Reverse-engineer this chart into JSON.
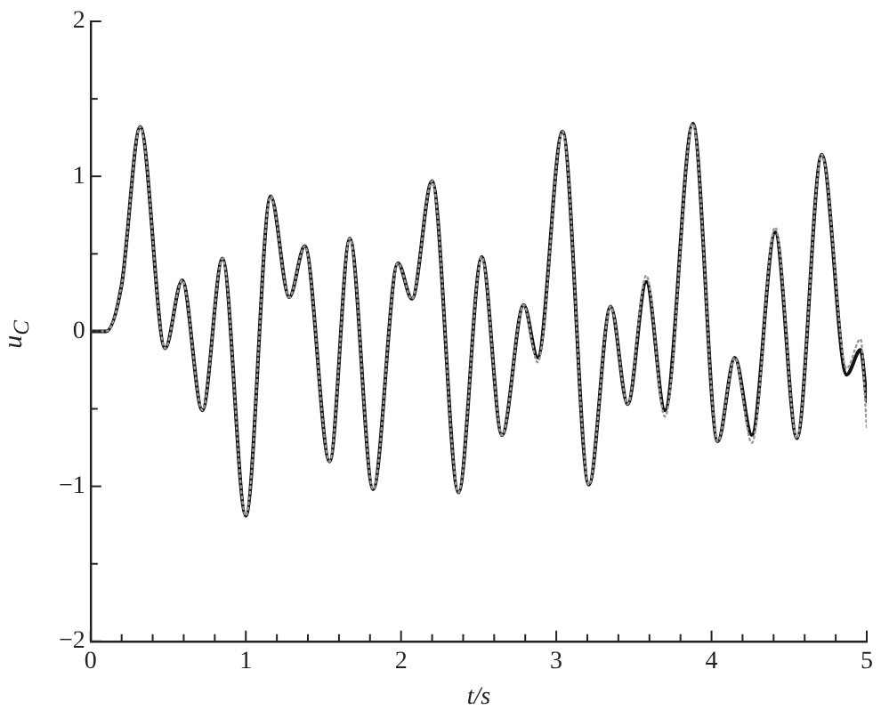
{
  "chart_data": {
    "type": "line",
    "xlabel": "t/s",
    "ylabel": "u$_{C}$",
    "xlim": [
      0,
      5
    ],
    "ylim": [
      -2,
      2
    ],
    "xticks": [
      0,
      {
        "value": 0.2,
        "label": null
      },
      {
        "value": 0.4,
        "label": null
      },
      {
        "value": 0.6,
        "label": null
      },
      {
        "value": 0.8,
        "label": null
      },
      1,
      {
        "value": 1.2,
        "label": null
      },
      {
        "value": 1.4,
        "label": null
      },
      {
        "value": 1.6,
        "label": null
      },
      {
        "value": 1.8,
        "label": null
      },
      2,
      {
        "value": 2.2,
        "label": null
      },
      {
        "value": 2.4,
        "label": null
      },
      {
        "value": 2.6,
        "label": null
      },
      {
        "value": 2.8,
        "label": null
      },
      3,
      {
        "value": 3.2,
        "label": null
      },
      {
        "value": 3.4,
        "label": null
      },
      {
        "value": 3.6,
        "label": null
      },
      {
        "value": 3.8,
        "label": null
      },
      4,
      {
        "value": 4.2,
        "label": null
      },
      {
        "value": 4.4,
        "label": null
      },
      {
        "value": 4.6,
        "label": null
      },
      {
        "value": 4.8,
        "label": null
      },
      5
    ],
    "yticks": [
      -2,
      {
        "value": -1.5,
        "label": null
      },
      -1,
      {
        "value": -0.5,
        "label": null
      },
      0,
      {
        "value": 0.5,
        "label": null
      },
      1,
      {
        "value": 1.5,
        "label": null
      },
      2
    ],
    "grid": false,
    "legend": false,
    "marker": "none",
    "series": [
      {
        "color": "#111111",
        "line_style": "solid",
        "x": [
          0,
          0.1,
          0.2,
          0.32,
          0.48,
          0.59,
          0.72,
          0.85,
          1.0,
          1.16,
          1.28,
          1.38,
          1.54,
          1.67,
          1.82,
          1.98,
          2.07,
          2.2,
          2.37,
          2.52,
          2.65,
          2.79,
          2.88,
          3.04,
          3.21,
          3.35,
          3.46,
          3.58,
          3.7,
          3.88,
          4.04,
          4.15,
          4.26,
          4.41,
          4.55,
          4.71,
          4.87,
          4.96,
          5.0
        ],
        "values": [
          0,
          0,
          0.3,
          1.32,
          -0.11,
          0.33,
          -0.51,
          0.47,
          -1.19,
          0.87,
          0.22,
          0.55,
          -0.84,
          0.6,
          -1.02,
          0.44,
          0.21,
          0.97,
          -1.04,
          0.48,
          -0.67,
          0.17,
          -0.17,
          1.29,
          -0.99,
          0.16,
          -0.47,
          0.32,
          -0.51,
          1.34,
          -0.71,
          -0.17,
          -0.67,
          0.64,
          -0.69,
          1.14,
          -0.28,
          -0.12,
          -0.45
        ]
      },
      {
        "color": "#999999",
        "line_style": "dotted",
        "x": [
          0,
          0.1,
          0.2,
          0.32,
          0.48,
          0.59,
          0.72,
          0.85,
          1.0,
          1.16,
          1.28,
          1.38,
          1.54,
          1.67,
          1.82,
          1.98,
          2.07,
          2.2,
          2.37,
          2.52,
          2.65,
          2.79,
          2.88,
          3.04,
          3.21,
          3.35,
          3.46,
          3.58,
          3.7,
          3.88,
          4.04,
          4.15,
          4.26,
          4.41,
          4.55,
          4.71,
          4.87,
          4.96,
          5.0
        ],
        "values": [
          0,
          0,
          0.3,
          1.32,
          -0.11,
          0.33,
          -0.51,
          0.47,
          -1.19,
          0.87,
          0.22,
          0.55,
          -0.84,
          0.6,
          -1.02,
          0.44,
          0.21,
          0.97,
          -1.04,
          0.48,
          -0.67,
          0.17,
          -0.2,
          1.29,
          -0.99,
          0.16,
          -0.47,
          0.36,
          -0.55,
          1.34,
          -0.71,
          -0.17,
          -0.72,
          0.67,
          -0.69,
          1.14,
          -0.24,
          -0.05,
          -0.62
        ]
      }
    ]
  }
}
